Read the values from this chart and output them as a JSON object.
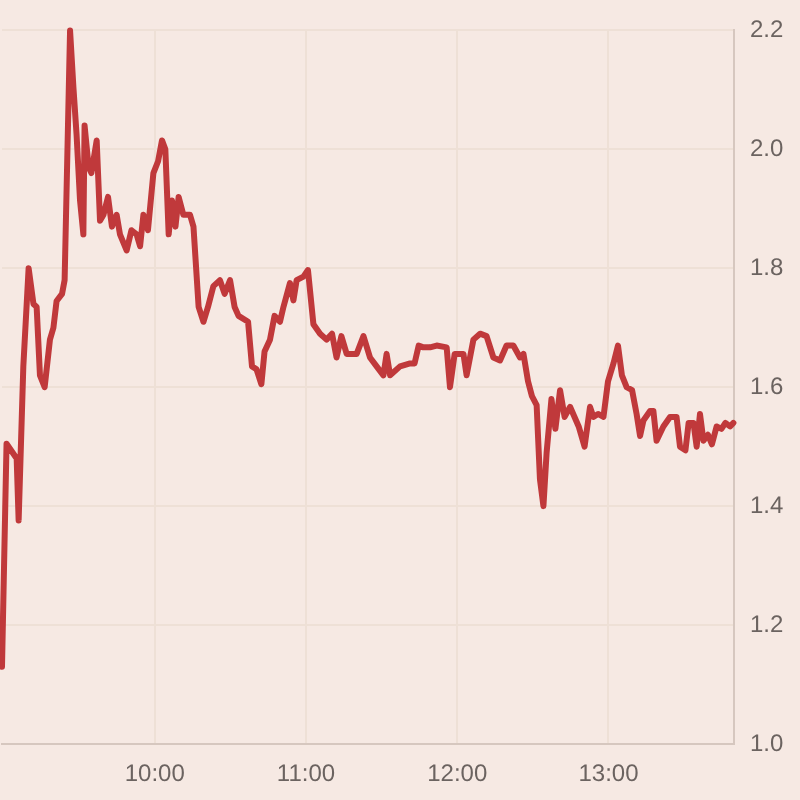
{
  "chart_data": {
    "type": "line",
    "x": [
      8.99,
      9.02,
      9.087,
      9.1,
      9.131,
      9.166,
      9.198,
      9.219,
      9.241,
      9.272,
      9.307,
      9.33,
      9.351,
      9.387,
      9.404,
      9.44,
      9.462,
      9.483,
      9.506,
      9.528,
      9.536,
      9.563,
      9.581,
      9.616,
      9.638,
      9.661,
      9.691,
      9.717,
      9.748,
      9.77,
      9.814,
      9.846,
      9.88,
      9.903,
      9.925,
      9.955,
      9.991,
      10.022,
      10.048,
      10.07,
      10.092,
      10.114,
      10.137,
      10.158,
      10.189,
      10.233,
      10.256,
      10.29,
      10.322,
      10.352,
      10.388,
      10.431,
      10.462,
      10.498,
      10.528,
      10.554,
      10.617,
      10.643,
      10.673,
      10.705,
      10.726,
      10.762,
      10.792,
      10.828,
      10.851,
      10.894,
      10.917,
      10.938,
      10.983,
      11.013,
      11.049,
      11.093,
      11.136,
      11.172,
      11.202,
      11.234,
      11.269,
      11.335,
      11.38,
      11.423,
      11.467,
      11.512,
      11.533,
      11.556,
      11.622,
      11.688,
      11.718,
      11.745,
      11.776,
      11.82,
      11.864,
      11.93,
      11.952,
      11.983,
      12.041,
      12.062,
      12.107,
      12.151,
      12.194,
      12.239,
      12.283,
      12.326,
      12.371,
      12.415,
      12.438,
      12.468,
      12.494,
      12.525,
      12.547,
      12.57,
      12.591,
      12.623,
      12.649,
      12.68,
      12.71,
      12.746,
      12.803,
      12.842,
      12.878,
      12.9,
      12.931,
      12.967,
      12.997,
      13.033,
      13.063,
      13.089,
      13.12,
      13.156,
      13.186,
      13.209,
      13.231,
      13.275,
      13.297,
      13.318,
      13.363,
      13.407,
      13.45,
      13.473,
      13.509,
      13.53,
      13.562,
      13.583,
      13.605,
      13.628,
      13.658,
      13.684,
      13.715,
      13.747,
      13.773,
      13.804,
      13.826
    ],
    "values": [
      1.13,
      1.505,
      1.48,
      1.376,
      1.635,
      1.8,
      1.74,
      1.735,
      1.62,
      1.6,
      1.68,
      1.7,
      1.745,
      1.757,
      1.78,
      2.2,
      2.105,
      2.025,
      1.914,
      1.857,
      2.04,
      1.97,
      1.96,
      2.015,
      1.88,
      1.89,
      1.92,
      1.87,
      1.89,
      1.857,
      1.83,
      1.864,
      1.857,
      1.837,
      1.89,
      1.864,
      1.96,
      1.98,
      2.015,
      2.0,
      1.857,
      1.914,
      1.87,
      1.92,
      1.89,
      1.89,
      1.87,
      1.735,
      1.71,
      1.735,
      1.77,
      1.78,
      1.757,
      1.78,
      1.735,
      1.72,
      1.71,
      1.635,
      1.63,
      1.605,
      1.66,
      1.68,
      1.72,
      1.71,
      1.735,
      1.775,
      1.746,
      1.78,
      1.786,
      1.797,
      1.706,
      1.69,
      1.68,
      1.69,
      1.65,
      1.686,
      1.656,
      1.656,
      1.686,
      1.65,
      1.635,
      1.62,
      1.656,
      1.62,
      1.635,
      1.64,
      1.64,
      1.67,
      1.667,
      1.667,
      1.67,
      1.667,
      1.6,
      1.656,
      1.656,
      1.62,
      1.68,
      1.69,
      1.686,
      1.65,
      1.645,
      1.67,
      1.67,
      1.65,
      1.656,
      1.61,
      1.585,
      1.57,
      1.445,
      1.4,
      1.49,
      1.58,
      1.53,
      1.595,
      1.55,
      1.567,
      1.534,
      1.5,
      1.567,
      1.55,
      1.555,
      1.55,
      1.61,
      1.64,
      1.67,
      1.62,
      1.6,
      1.595,
      1.555,
      1.518,
      1.544,
      1.56,
      1.56,
      1.51,
      1.534,
      1.55,
      1.55,
      1.5,
      1.494,
      1.54,
      1.54,
      1.5,
      1.555,
      1.51,
      1.52,
      1.504,
      1.534,
      1.53,
      1.54,
      1.534,
      1.54
    ],
    "color": "#c0393b",
    "marker": "none",
    "xlim": [
      8.99,
      13.83
    ],
    "xticks": [
      {
        "value": 10,
        "label": "10:00"
      },
      {
        "value": 11,
        "label": "11:00"
      },
      {
        "value": 12,
        "label": "12:00"
      },
      {
        "value": 13,
        "label": "13:00"
      }
    ],
    "ylim": [
      1.0,
      2.2
    ],
    "yticks": [
      {
        "value": 1.0,
        "label": "1.0"
      },
      1.2,
      1.4,
      1.6,
      1.8,
      {
        "value": 2.0,
        "label": "2.0"
      },
      2.2
    ],
    "grid": true
  }
}
